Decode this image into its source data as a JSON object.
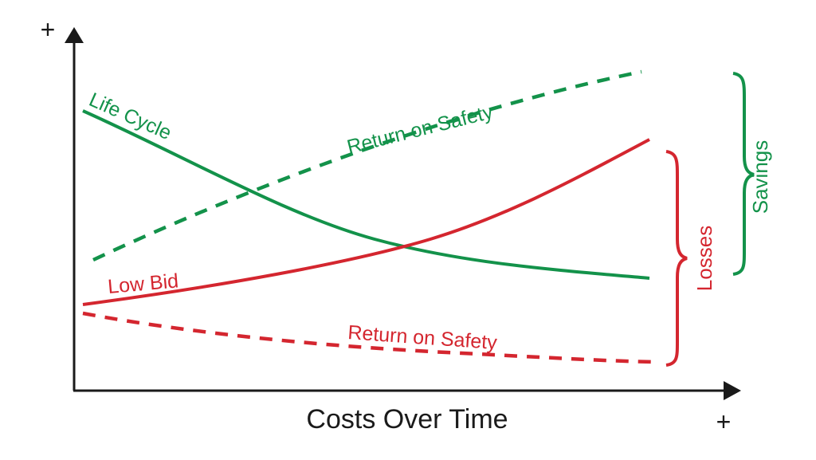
{
  "axes": {
    "x_title": "Costs Over Time",
    "x_plus": "+",
    "y_plus": "+"
  },
  "labels": {
    "life_cycle": "Life Cycle",
    "return_on_safety_upper": "Return on Safety",
    "low_bid": "Low Bid",
    "return_on_safety_lower": "Return on Safety",
    "losses": "Losses",
    "savings": "Savings"
  },
  "colors": {
    "green": "#13924a",
    "red": "#d4262f",
    "axis": "#1a1a1a"
  }
}
